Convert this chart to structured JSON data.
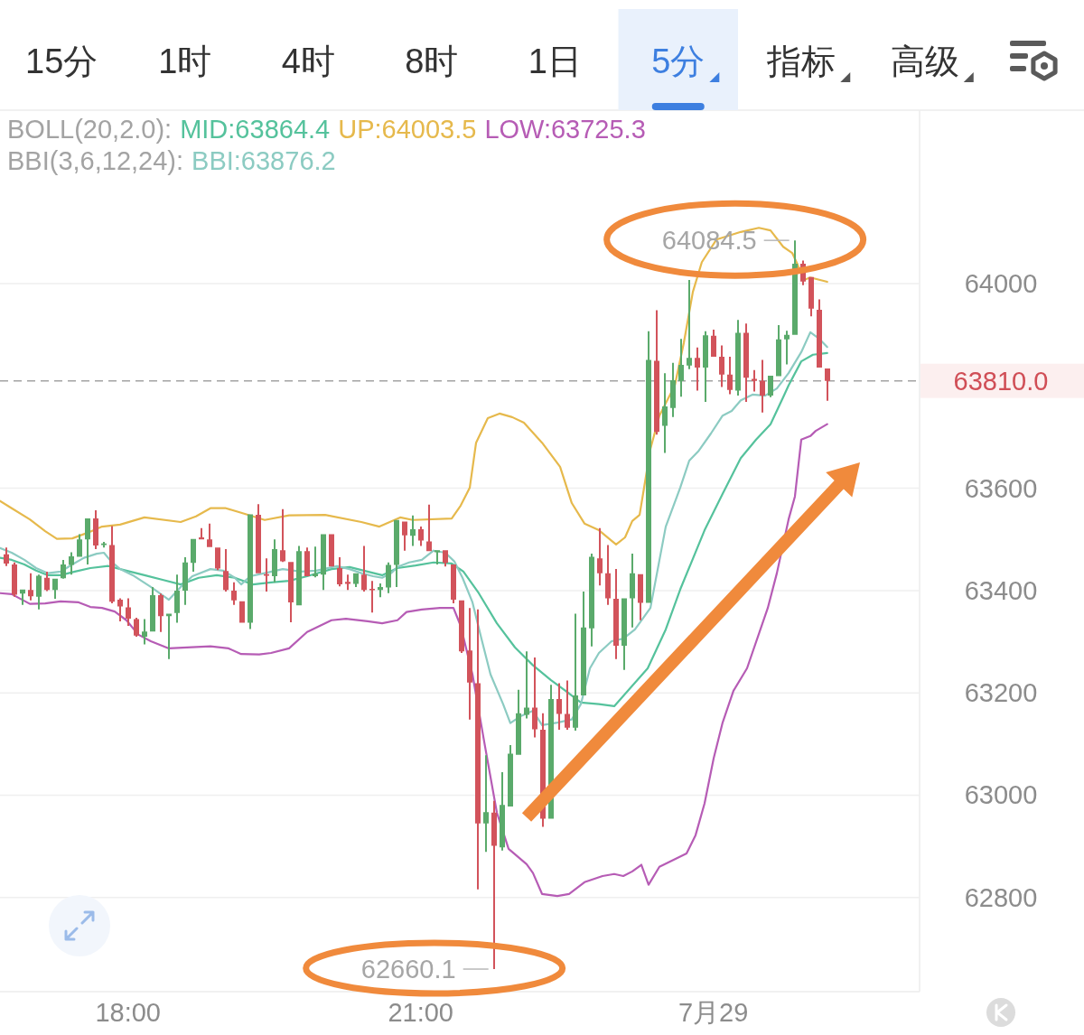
{
  "chart_data": [
    {
      "type": "other",
      "categories": [
        "15分",
        "1时",
        "4时",
        "8时",
        "1日",
        "5分",
        "指标",
        "高级"
      ],
      "colors": [
        "#333333",
        "#333333",
        "#333333",
        "#333333",
        "#333333",
        "#3d7fe0",
        "#333333",
        "#333333"
      ]
    },
    {
      "type": "candlestick",
      "legend": "top left",
      "grid": "y",
      "xlim": [
        16.688,
        26.114
      ],
      "xticks": [
        {
          "value": 18,
          "label": "18:00"
        },
        {
          "value": 21,
          "label": "21:00"
        },
        {
          "value": 24,
          "label": "7月29"
        }
      ],
      "ylim": [
        62616,
        64339
      ],
      "yticks": [
        62800,
        63000,
        63200,
        63400,
        63600,
        {
          "value": 63810,
          "label": "63810.0"
        },
        64000
      ],
      "x": [
        16.75,
        16.833,
        16.917,
        17,
        17.083,
        17.167,
        17.25,
        17.333,
        17.417,
        17.5,
        17.583,
        17.667,
        17.75,
        17.833,
        17.917,
        18,
        18.083,
        18.167,
        18.25,
        18.333,
        18.417,
        18.5,
        18.583,
        18.667,
        18.75,
        18.833,
        18.917,
        19,
        19.083,
        19.167,
        19.25,
        19.333,
        19.417,
        19.5,
        19.583,
        19.667,
        19.75,
        19.833,
        19.917,
        20,
        20.083,
        20.167,
        20.25,
        20.333,
        20.417,
        20.5,
        20.583,
        20.667,
        20.75,
        20.833,
        20.917,
        21,
        21.083,
        21.167,
        21.25,
        21.333,
        21.417,
        21.5,
        21.583,
        21.667,
        21.75,
        21.833,
        21.917,
        22,
        22.083,
        22.167,
        22.25,
        22.333,
        22.417,
        22.5,
        22.583,
        22.667,
        22.75,
        22.833,
        22.917,
        23,
        23.083,
        23.167,
        23.25,
        23.333,
        23.417,
        23.5,
        23.583,
        23.667,
        23.75,
        23.833,
        23.917,
        24,
        24.083,
        24.167,
        24.25,
        24.333,
        24.417,
        24.5,
        24.583,
        24.667,
        24.75,
        24.833,
        24.917,
        25,
        25.083,
        25.167
      ],
      "ohlc": [
        [
          63471,
          63484,
          63448,
          63453
        ],
        [
          63451,
          63455,
          63388,
          63392
        ],
        [
          63394,
          63402,
          63372,
          63402
        ],
        [
          63401,
          63434,
          63381,
          63389
        ],
        [
          63388,
          63431,
          63363,
          63429
        ],
        [
          63425,
          63437,
          63399,
          63401
        ],
        [
          63401,
          63423,
          63384,
          63423
        ],
        [
          63424,
          63460,
          63423,
          63451
        ],
        [
          63450,
          63475,
          63431,
          63467
        ],
        [
          63466,
          63510,
          63466,
          63500
        ],
        [
          63500,
          63541,
          63451,
          63541
        ],
        [
          63541,
          63557,
          63481,
          63488
        ],
        [
          63489,
          63495,
          63484,
          63492
        ],
        [
          63489,
          63526,
          63375,
          63378
        ],
        [
          63382,
          63385,
          63340,
          63369
        ],
        [
          63367,
          63385,
          63331,
          63345
        ],
        [
          63344,
          63347,
          63310,
          63312
        ],
        [
          63310,
          63344,
          63295,
          63320
        ],
        [
          63320,
          63407,
          63320,
          63391
        ],
        [
          63391,
          63394,
          63319,
          63350
        ],
        [
          63350,
          63355,
          63266,
          63355
        ],
        [
          63356,
          63431,
          63337,
          63400
        ],
        [
          63400,
          63465,
          63372,
          63455
        ],
        [
          63454,
          63501,
          63437,
          63501
        ],
        [
          63504,
          63522,
          63500,
          63500
        ],
        [
          63500,
          63531,
          63485,
          63485
        ],
        [
          63484,
          63484,
          63440,
          63443
        ],
        [
          63438,
          63481,
          63398,
          63401
        ],
        [
          63400,
          63416,
          63372,
          63381
        ],
        [
          63379,
          63379,
          63337,
          63337
        ],
        [
          63337,
          63549,
          63325,
          63549
        ],
        [
          63548,
          63569,
          63434,
          63434
        ],
        [
          63432,
          63463,
          63398,
          63429
        ],
        [
          63428,
          63500,
          63416,
          63481
        ],
        [
          63479,
          63559,
          63456,
          63457
        ],
        [
          63456,
          63456,
          63338,
          63377
        ],
        [
          63371,
          63487,
          63371,
          63477
        ],
        [
          63477,
          63484,
          63428,
          63428
        ],
        [
          63428,
          63486,
          63426,
          63433
        ],
        [
          63431,
          63510,
          63401,
          63510
        ],
        [
          63510,
          63510,
          63447,
          63447
        ],
        [
          63444,
          63465,
          63408,
          63412
        ],
        [
          63417,
          63431,
          63401,
          63413
        ],
        [
          63413,
          63434,
          63407,
          63434
        ],
        [
          63431,
          63487,
          63398,
          63401
        ],
        [
          63403,
          63419,
          63357,
          63401
        ],
        [
          63401,
          63414,
          63387,
          63407
        ],
        [
          63406,
          63455,
          63395,
          63450
        ],
        [
          63450,
          63538,
          63407,
          63538
        ],
        [
          63535,
          63535,
          63478,
          63508
        ],
        [
          63507,
          63547,
          63487,
          63520
        ],
        [
          63520,
          63525,
          63487,
          63498
        ],
        [
          63496,
          63568,
          63477,
          63477
        ],
        [
          63475,
          63479,
          63451,
          63479
        ],
        [
          63479,
          63479,
          63447,
          63454
        ],
        [
          63451,
          63451,
          63375,
          63382
        ],
        [
          63381,
          63381,
          63278,
          63281
        ],
        [
          63283,
          63366,
          63148,
          63220
        ],
        [
          63219,
          63363,
          62816,
          62945
        ],
        [
          62945,
          63078,
          62889,
          62967
        ],
        [
          62966,
          62989,
          62660.1,
          62901
        ],
        [
          62898,
          63045,
          62892,
          62981
        ],
        [
          62978,
          63098,
          62978,
          63081
        ],
        [
          63079,
          63206,
          63079,
          63160
        ],
        [
          63157,
          63281,
          63150,
          63171
        ],
        [
          63171,
          63269,
          63113,
          63129
        ],
        [
          63128,
          63160,
          62938,
          62954
        ],
        [
          62954,
          63216,
          62954,
          63188
        ],
        [
          63188,
          63219,
          63128,
          63159
        ],
        [
          63159,
          63224,
          63128,
          63132
        ],
        [
          63132,
          63355,
          63126,
          63195
        ],
        [
          63195,
          63398,
          63195,
          63328
        ],
        [
          63326,
          63472,
          63291,
          63466
        ],
        [
          63463,
          63522,
          63410,
          63434
        ],
        [
          63434,
          63489,
          63372,
          63385
        ],
        [
          63384,
          63442,
          63266,
          63292
        ],
        [
          63292,
          63385,
          63245,
          63385
        ],
        [
          63385,
          63472,
          63328,
          63434
        ],
        [
          63432,
          63432,
          63342,
          63376
        ],
        [
          63376,
          63907,
          63376,
          63851
        ],
        [
          63849,
          63948,
          63705,
          63710
        ],
        [
          63722,
          63825,
          63669,
          63760
        ],
        [
          63757,
          63845,
          63739,
          63811
        ],
        [
          63810,
          63892,
          63779,
          63841
        ],
        [
          63840,
          64007,
          63833,
          63855
        ],
        [
          63855,
          63875,
          63791,
          63836
        ],
        [
          63836,
          63907,
          63769,
          63899
        ],
        [
          63898,
          63910,
          63857,
          63857
        ],
        [
          63857,
          63879,
          63798,
          63822
        ],
        [
          63822,
          63857,
          63784,
          63792
        ],
        [
          63791,
          63929,
          63781,
          63904
        ],
        [
          63904,
          63922,
          63769,
          63816
        ],
        [
          63814,
          63831,
          63789,
          63810
        ],
        [
          63810,
          63851,
          63748,
          63781
        ],
        [
          63781,
          63820,
          63778,
          63820
        ],
        [
          63819,
          63919,
          63819,
          63891
        ],
        [
          63891,
          63908,
          63842,
          63900
        ],
        [
          63900,
          64084.5,
          63900,
          64039
        ],
        [
          64039,
          64045,
          63997,
          64004
        ],
        [
          64013,
          64013,
          63936,
          63951
        ],
        [
          63949,
          63969,
          63836,
          63836
        ],
        [
          63834,
          63834,
          63771,
          63810
        ]
      ],
      "colors": [
        "#d2535b",
        "#d2535b",
        "#5aaa6b",
        "#d2535b",
        "#5aaa6b",
        "#d2535b",
        "#5aaa6b",
        "#5aaa6b",
        "#5aaa6b",
        "#5aaa6b",
        "#5aaa6b",
        "#d2535b",
        "#5aaa6b",
        "#d2535b",
        "#d2535b",
        "#d2535b",
        "#d2535b",
        "#5aaa6b",
        "#5aaa6b",
        "#d2535b",
        "#5aaa6b",
        "#5aaa6b",
        "#5aaa6b",
        "#5aaa6b",
        "#d2535b",
        "#d2535b",
        "#d2535b",
        "#d2535b",
        "#d2535b",
        "#d2535b",
        "#5aaa6b",
        "#d2535b",
        "#d2535b",
        "#5aaa6b",
        "#d2535b",
        "#d2535b",
        "#5aaa6b",
        "#d2535b",
        "#5aaa6b",
        "#5aaa6b",
        "#d2535b",
        "#d2535b",
        "#d2535b",
        "#5aaa6b",
        "#d2535b",
        "#d2535b",
        "#5aaa6b",
        "#5aaa6b",
        "#5aaa6b",
        "#d2535b",
        "#5aaa6b",
        "#d2535b",
        "#d2535b",
        "#5aaa6b",
        "#d2535b",
        "#d2535b",
        "#d2535b",
        "#d2535b",
        "#d2535b",
        "#5aaa6b",
        "#d2535b",
        "#5aaa6b",
        "#5aaa6b",
        "#5aaa6b",
        "#5aaa6b",
        "#d2535b",
        "#d2535b",
        "#5aaa6b",
        "#d2535b",
        "#d2535b",
        "#5aaa6b",
        "#5aaa6b",
        "#5aaa6b",
        "#d2535b",
        "#d2535b",
        "#d2535b",
        "#5aaa6b",
        "#5aaa6b",
        "#d2535b",
        "#5aaa6b",
        "#d2535b",
        "#5aaa6b",
        "#5aaa6b",
        "#5aaa6b",
        "#5aaa6b",
        "#d2535b",
        "#5aaa6b",
        "#d2535b",
        "#d2535b",
        "#d2535b",
        "#5aaa6b",
        "#d2535b",
        "#d2535b",
        "#d2535b",
        "#5aaa6b",
        "#5aaa6b",
        "#5aaa6b",
        "#5aaa6b",
        "#d2535b",
        "#d2535b",
        "#d2535b",
        "#d2535b"
      ],
      "series": [
        {
          "name": "MID:63864.4",
          "type": "line",
          "color": "#55c29c",
          "x": [
            16.688,
            16.808,
            16.938,
            17.058,
            17.179,
            17.308,
            17.456,
            17.614,
            17.799,
            17.984,
            18.169,
            18.355,
            18.54,
            18.725,
            18.91,
            19.095,
            19.281,
            19.466,
            19.651,
            19.836,
            20.086,
            20.271,
            20.456,
            20.605,
            20.762,
            20.947,
            21.132,
            21.318,
            21.438,
            21.595,
            21.781,
            21.966,
            22.151,
            22.336,
            22.521,
            22.642,
            22.827,
            22.984,
            23.327,
            23.512,
            23.66,
            23.91,
            24.095,
            24.281,
            24.438,
            24.586,
            24.716,
            24.771,
            24.901,
            25.021,
            25.167
          ],
          "values": [
            63464,
            63460,
            63451,
            63439,
            63430,
            63430,
            63437,
            63444,
            63448,
            63439,
            63430,
            63421,
            63412,
            63425,
            63430,
            63425,
            63412,
            63416,
            63419,
            63428,
            63442,
            63446,
            63437,
            63430,
            63444,
            63449,
            63455,
            63453,
            63437,
            63395,
            63336,
            63289,
            63254,
            63225,
            63199,
            63181,
            63178,
            63174,
            63248,
            63324,
            63402,
            63518,
            63589,
            63659,
            63695,
            63725,
            63778,
            63801,
            63848,
            63861,
            63864.4
          ]
        },
        {
          "name": "UP:64003.5",
          "type": "line",
          "color": "#e6b94c",
          "x": [
            16.688,
            16.808,
            16.994,
            17.151,
            17.271,
            17.429,
            17.586,
            17.734,
            17.919,
            18.169,
            18.54,
            18.697,
            18.845,
            19.003,
            19.16,
            19.401,
            19.651,
            20.021,
            20.392,
            20.577,
            20.79,
            20.919,
            21.318,
            21.41,
            21.503,
            21.568,
            21.688,
            21.808,
            21.938,
            22.058,
            22.244,
            22.429,
            22.549,
            22.679,
            22.827,
            23.003,
            23.095,
            23.169,
            23.244,
            23.29,
            23.355,
            23.447,
            23.605,
            23.697,
            23.79,
            23.882,
            24.031,
            24.281,
            24.466,
            24.586,
            24.716,
            24.808,
            24.864,
            24.929,
            24.994,
            25.167
          ],
          "values": [
            63575,
            63561,
            63539,
            63516,
            63501,
            63502,
            63513,
            63525,
            63529,
            63543,
            63534,
            63545,
            63561,
            63561,
            63552,
            63538,
            63547,
            63548,
            63534,
            63525,
            63543,
            63538,
            63541,
            63566,
            63601,
            63689,
            63737,
            63746,
            63739,
            63728,
            63689,
            63642,
            63571,
            63531,
            63518,
            63490,
            63504,
            63536,
            63548,
            63601,
            63677,
            63742,
            63801,
            63884,
            63984,
            64042,
            64086,
            64101,
            64109,
            64104,
            64072,
            64060,
            64037,
            64007,
            64012,
            64003.5
          ]
        },
        {
          "name": "LOW:63725.3",
          "type": "line",
          "color": "#b65cb5",
          "x": [
            16.688,
            16.808,
            16.994,
            17.151,
            17.308,
            17.494,
            17.614,
            17.734,
            17.864,
            17.984,
            18.105,
            18.234,
            18.419,
            18.605,
            18.845,
            19.031,
            19.16,
            19.345,
            19.466,
            19.651,
            19.836,
            20.086,
            20.234,
            20.456,
            20.605,
            20.762,
            20.855,
            21.012,
            21.197,
            21.336,
            21.41,
            21.531,
            21.66,
            21.781,
            21.901,
            22.086,
            22.151,
            22.244,
            22.401,
            22.521,
            22.679,
            22.864,
            22.984,
            23.077,
            23.169,
            23.262,
            23.336,
            23.447,
            23.725,
            23.818,
            23.91,
            24.003,
            24.095,
            24.206,
            24.345,
            24.558,
            24.651,
            24.771,
            24.836,
            24.901,
            24.994,
            25.049,
            25.167
          ],
          "values": [
            63395,
            63393,
            63374,
            63375,
            63379,
            63377,
            63368,
            63366,
            63359,
            63342,
            63314,
            63301,
            63287,
            63289,
            63291,
            63287,
            63276,
            63275,
            63278,
            63287,
            63319,
            63342,
            63345,
            63340,
            63336,
            63342,
            63358,
            63363,
            63366,
            63366,
            63331,
            63236,
            63095,
            62966,
            62895,
            62865,
            62848,
            62807,
            62803,
            62807,
            62830,
            62842,
            62846,
            62842,
            62851,
            62864,
            62825,
            62860,
            62886,
            62922,
            62984,
            63072,
            63142,
            63204,
            63248,
            63366,
            63434,
            63539,
            63584,
            63695,
            63702,
            63712,
            63725.3
          ]
        },
        {
          "name": "BBI:63876.2",
          "type": "line",
          "color": "#8ccbc2",
          "x": [
            16.688,
            16.808,
            16.938,
            17.058,
            17.179,
            17.308,
            17.429,
            17.549,
            17.679,
            17.753,
            17.827,
            17.919,
            18.049,
            18.234,
            18.419,
            18.54,
            18.66,
            18.845,
            18.975,
            19.095,
            19.16,
            19.253,
            19.401,
            19.586,
            19.771,
            19.929,
            20.142,
            20.271,
            20.392,
            20.512,
            20.605,
            20.697,
            20.762,
            20.882,
            21.012,
            21.132,
            21.253,
            21.345,
            21.429,
            21.531,
            21.623,
            21.716,
            21.845,
            21.919,
            22.03,
            22.151,
            22.244,
            22.401,
            22.549,
            22.642,
            22.735,
            22.827,
            22.957,
            23.077,
            23.197,
            23.355,
            23.512,
            23.66,
            23.753,
            23.845,
            23.975,
            24.095,
            24.188,
            24.281,
            24.401,
            24.53,
            24.651,
            24.771,
            24.901,
            24.994,
            25.086,
            25.167
          ],
          "values": [
            63483,
            63474,
            63460,
            63444,
            63434,
            63437,
            63451,
            63464,
            63472,
            63474,
            63457,
            63442,
            63430,
            63407,
            63382,
            63407,
            63428,
            63442,
            63439,
            63425,
            63412,
            63428,
            63434,
            63442,
            63437,
            63439,
            63448,
            63442,
            63434,
            63428,
            63425,
            63434,
            63446,
            63455,
            63460,
            63478,
            63474,
            63457,
            63425,
            63377,
            63306,
            63236,
            63178,
            63141,
            63155,
            63165,
            63137,
            63142,
            63148,
            63178,
            63248,
            63278,
            63301,
            63306,
            63324,
            63366,
            63525,
            63601,
            63654,
            63672,
            63707,
            63742,
            63751,
            63772,
            63783,
            63781,
            63795,
            63825,
            63866,
            63905,
            63892,
            63876.2
          ]
        }
      ],
      "ref_lines": [
        {
          "axis": "y",
          "value": 63810,
          "color": "#a3a3a3",
          "line_style": "dashed"
        }
      ],
      "annotations": [
        {
          "text": "64084.5",
          "x": 24.833,
          "y": 64084.5
        },
        {
          "text": "62660.1",
          "x": 21.75,
          "y": 62660.1
        },
        "BOLL(20,2.0):",
        "BBI(3,6,12,24):"
      ]
    }
  ]
}
